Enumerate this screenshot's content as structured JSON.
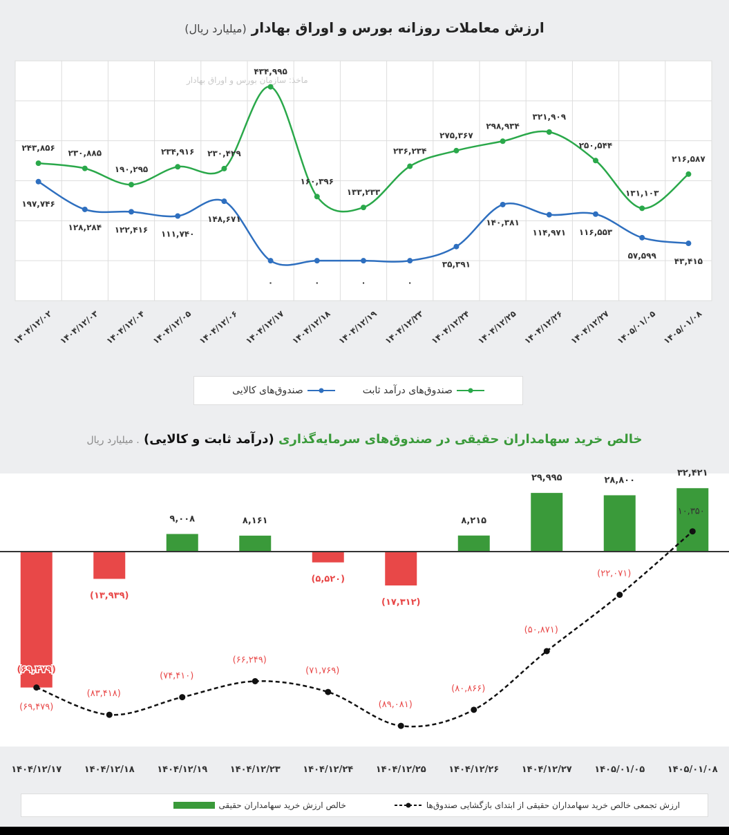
{
  "chart_data": [
    {
      "type": "line",
      "title": "ارزش معاملات روزانه بورس و اوراق بهادار",
      "unit": "(میلیارد ریال)",
      "source": "ماخذ: سازمان بورس و اوراق بهادار",
      "categories": [
        "۱۴۰۴/۱۲/۰۲",
        "۱۴۰۴/۱۲/۰۳",
        "۱۴۰۴/۱۲/۰۴",
        "۱۴۰۴/۱۲/۰۵",
        "۱۴۰۴/۱۲/۰۶",
        "۱۴۰۴/۱۲/۱۷",
        "۱۴۰۴/۱۲/۱۸",
        "۱۴۰۴/۱۲/۱۹",
        "۱۴۰۴/۱۲/۲۳",
        "۱۴۰۴/۱۲/۲۴",
        "۱۴۰۴/۱۲/۲۵",
        "۱۴۰۴/۱۲/۲۶",
        "۱۴۰۴/۱۲/۲۷",
        "۱۴۰۵/۰۱/۰۵",
        "۱۴۰۵/۰۱/۰۸"
      ],
      "series": [
        {
          "name": "صندوق‌های درآمد ثابت",
          "color": "#2aa84a",
          "values": [
            243856,
            230885,
            190295,
            234916,
            230429,
            434995,
            160396,
            133233,
            236234,
            275367,
            298934,
            321909,
            250544,
            131103,
            216587
          ]
        },
        {
          "name": "صندوق‌های کالایی",
          "color": "#2e6fbf",
          "values": [
            197746,
            128284,
            122416,
            111740,
            148671,
            0,
            0,
            0,
            0,
            35391,
            140381,
            114971,
            116553,
            57599,
            43415
          ]
        }
      ],
      "ylim": [
        -100000,
        500000
      ],
      "grid": true,
      "legend": "bottom"
    },
    {
      "type": "bar+line",
      "title": "خالص خرید سهامداران حقیقی در صندوق‌های سرمایه‌گذاری",
      "title_bold": "(درآمد ثابت و کالایی)",
      "unit": ". میلیارد ریال",
      "categories": [
        "۱۴۰۴/۱۲/۱۷",
        "۱۴۰۴/۱۲/۱۸",
        "۱۴۰۴/۱۲/۱۹",
        "۱۴۰۴/۱۲/۲۳",
        "۱۴۰۴/۱۲/۲۴",
        "۱۴۰۴/۱۲/۲۵",
        "۱۴۰۴/۱۲/۲۶",
        "۱۴۰۴/۱۲/۲۷",
        "۱۴۰۵/۰۱/۰۵",
        "۱۴۰۵/۰۱/۰۸"
      ],
      "series": [
        {
          "name": "خالص ارزش خرید سهامداران حقیقی",
          "type": "bar",
          "positive_color": "#3a9a3a",
          "negative_color": "#e84848",
          "values": [
            -69479,
            -13939,
            9008,
            8161,
            -5520,
            -17312,
            8215,
            29995,
            28800,
            32421
          ]
        },
        {
          "name": "ارزش تجمعی خالص خرید سهامداران حقیقی از ابتدای بازگشایی صندوق‌ها",
          "type": "line",
          "color": "#111",
          "values": [
            -69479,
            -83418,
            -74410,
            -66249,
            -71769,
            -89081,
            -80866,
            -50871,
            -22071,
            10350
          ]
        }
      ],
      "legend": "bottom"
    }
  ]
}
